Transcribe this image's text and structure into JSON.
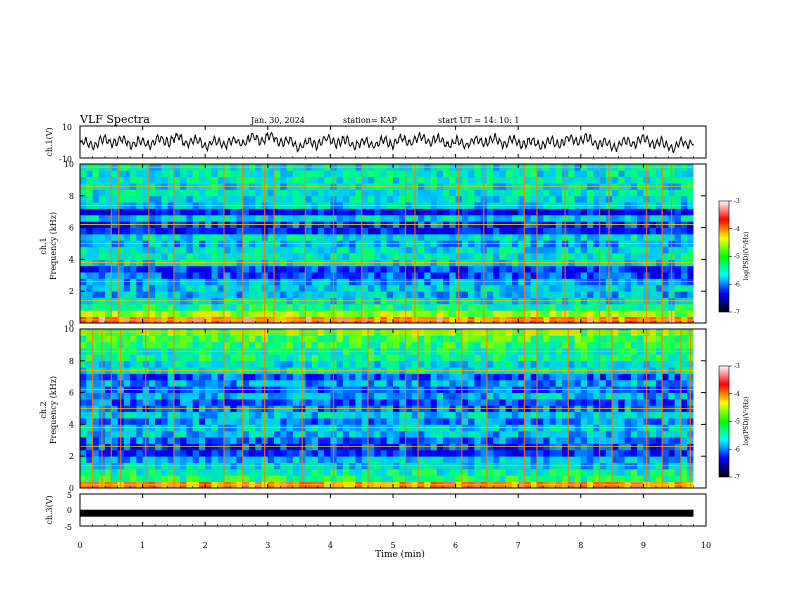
{
  "header": {
    "title": "VLF Spectra",
    "date": "Jan. 30, 2024",
    "station": "station= KAP",
    "start": "start  UT =   14: 10: 1"
  },
  "colorbar": {
    "label": "log(PSD)(V²/Hz)",
    "ticks": [
      "-3",
      "-4",
      "-5",
      "-6",
      "-7"
    ],
    "stops": [
      "#ffffff",
      "#ff0000",
      "#ffff00",
      "#00ff00",
      "#00ffff",
      "#0000ff",
      "#000000"
    ]
  },
  "chart_data": [
    {
      "type": "line",
      "panel": "ch1-waveform",
      "ylabel": "ch.1(V)",
      "ylim": [
        -10,
        10
      ],
      "yticks": [
        "10",
        "-10"
      ],
      "x": [
        0,
        0.5,
        1,
        1.5,
        2,
        2.5,
        3,
        3.5,
        4,
        4.5,
        5,
        5.5,
        6,
        6.5,
        7,
        7.5,
        8,
        8.5,
        9,
        9.5,
        9.8
      ],
      "y": [
        -2,
        1,
        -1,
        2,
        -1,
        0,
        3,
        -2,
        1,
        -1,
        0,
        2,
        -1,
        1,
        0,
        -1,
        2,
        -2,
        1,
        -3,
        1
      ],
      "note": ""
    },
    {
      "type": "heatmap",
      "panel": "ch1-spectrogram",
      "ylabel": "ch.1\nFrequency (kHz)",
      "ylim": [
        0,
        10
      ],
      "yticks": [
        "0",
        "2",
        "4",
        "6",
        "8",
        "10"
      ],
      "rows": [
        {
          "f": 0.2,
          "level": -3.6
        },
        {
          "f": 0.6,
          "level": -4.4
        },
        {
          "f": 1.0,
          "level": -5.1
        },
        {
          "f": 1.4,
          "level": -5.4
        },
        {
          "f": 1.8,
          "level": -5.6
        },
        {
          "f": 2.2,
          "level": -5.5
        },
        {
          "f": 2.6,
          "level": -5.7
        },
        {
          "f": 3.0,
          "level": -6.0
        },
        {
          "f": 3.4,
          "level": -6.1
        },
        {
          "f": 3.8,
          "level": -5.4
        },
        {
          "f": 4.2,
          "level": -5.3
        },
        {
          "f": 4.6,
          "level": -5.4
        },
        {
          "f": 5.0,
          "level": -5.6
        },
        {
          "f": 5.4,
          "level": -5.4
        },
        {
          "f": 5.8,
          "level": -6.3
        },
        {
          "f": 6.2,
          "level": -6.1
        },
        {
          "f": 6.6,
          "level": -5.5
        },
        {
          "f": 7.0,
          "level": -6.4
        },
        {
          "f": 7.4,
          "level": -5.5
        },
        {
          "f": 7.8,
          "level": -5.4
        },
        {
          "f": 8.2,
          "level": -5.3
        },
        {
          "f": 8.6,
          "level": -5.4
        },
        {
          "f": 9.0,
          "level": -5.3
        },
        {
          "f": 9.4,
          "level": -5.3
        },
        {
          "f": 9.8,
          "level": -5.4
        }
      ],
      "spikes_min": [
        0.5,
        0.62,
        1.1,
        1.5,
        2.3,
        2.6,
        2.95,
        3.1,
        3.6,
        4.05,
        4.5,
        5.2,
        5.35,
        6.05,
        6.45,
        7.1,
        7.3,
        7.75,
        8.3,
        8.45,
        9.05,
        9.3,
        9.45
      ]
    },
    {
      "type": "heatmap",
      "panel": "ch2-spectrogram",
      "ylabel": "ch.2\nFrequency (kHz)",
      "ylim": [
        0,
        10
      ],
      "yticks": [
        "0",
        "2",
        "4",
        "6",
        "8",
        "10"
      ],
      "rows": [
        {
          "f": 0.2,
          "level": -3.7
        },
        {
          "f": 0.6,
          "level": -5.0
        },
        {
          "f": 1.0,
          "level": -5.2
        },
        {
          "f": 1.4,
          "level": -5.5
        },
        {
          "f": 1.8,
          "level": -5.6
        },
        {
          "f": 2.2,
          "level": -6.2
        },
        {
          "f": 2.6,
          "level": -6.1
        },
        {
          "f": 3.0,
          "level": -5.9
        },
        {
          "f": 3.4,
          "level": -5.6
        },
        {
          "f": 3.8,
          "level": -5.5
        },
        {
          "f": 4.2,
          "level": -5.8
        },
        {
          "f": 4.6,
          "level": -5.5
        },
        {
          "f": 5.0,
          "level": -5.9
        },
        {
          "f": 5.4,
          "level": -6.0
        },
        {
          "f": 5.8,
          "level": -5.6
        },
        {
          "f": 6.2,
          "level": -6.0
        },
        {
          "f": 6.6,
          "level": -5.7
        },
        {
          "f": 7.0,
          "level": -6.0
        },
        {
          "f": 7.4,
          "level": -5.3
        },
        {
          "f": 7.8,
          "level": -5.4
        },
        {
          "f": 8.2,
          "level": -5.1
        },
        {
          "f": 8.6,
          "level": -5.2
        },
        {
          "f": 9.0,
          "level": -4.9
        },
        {
          "f": 9.4,
          "level": -4.8
        },
        {
          "f": 9.8,
          "level": -4.6
        }
      ],
      "spikes_min": [
        0.2,
        0.35,
        0.5,
        0.65,
        1.05,
        1.5,
        2.3,
        2.6,
        2.95,
        3.55,
        4.05,
        4.6,
        5.2,
        5.4,
        6.1,
        6.5,
        7.1,
        7.3,
        7.8,
        8.3,
        8.5,
        9.05,
        9.3,
        9.6,
        9.75
      ]
    },
    {
      "type": "line",
      "panel": "ch3-waveform",
      "ylabel": "ch.3(V)",
      "ylim": [
        -5,
        5
      ],
      "yticks": [
        "5",
        "0",
        "-5"
      ],
      "x": [
        0,
        9.8
      ],
      "y": [
        -1,
        -1
      ]
    }
  ],
  "xaxis": {
    "label": "Time (min)",
    "xlim": [
      0,
      10
    ],
    "ticks": [
      "0",
      "1",
      "2",
      "3",
      "4",
      "5",
      "6",
      "7",
      "8",
      "9",
      "10"
    ]
  }
}
